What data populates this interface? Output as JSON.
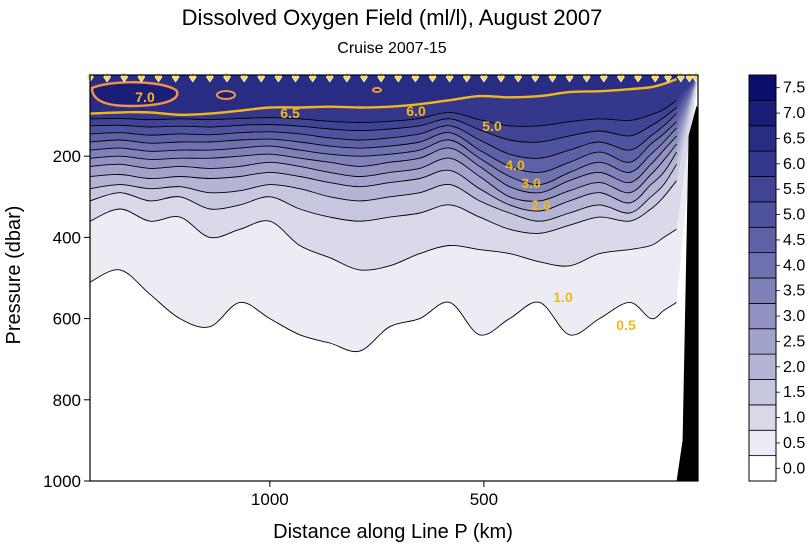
{
  "chart_data": {
    "type": "contour",
    "title": "Dissolved Oxygen Field  (ml/l),  August 2007",
    "subtitle": "Cruise 2007-15",
    "xlabel": "Distance along Line P  (km)",
    "ylabel": "Pressure  (dbar)",
    "x_range": [
      1420,
      0
    ],
    "x_ticks": [
      {
        "value": 1000,
        "label": "1000"
      },
      {
        "value": 500,
        "label": "500"
      }
    ],
    "y_range": [
      0,
      1000
    ],
    "y_inverted": true,
    "y_ticks": [
      {
        "value": 200,
        "label": "200"
      },
      {
        "value": 400,
        "label": "400"
      },
      {
        "value": 600,
        "label": "600"
      },
      {
        "value": 800,
        "label": "800"
      },
      {
        "value": 1000,
        "label": "1000"
      }
    ],
    "colorbar": {
      "levels": [
        "0.0",
        "0.5",
        "1.0",
        "1.5",
        "2.0",
        "2.5",
        "3.0",
        "3.5",
        "4.0",
        "4.5",
        "5.0",
        "5.5",
        "6.0",
        "6.5",
        "7.0",
        "7.5"
      ],
      "colors": [
        "#ffffff",
        "#ececf4",
        "#d9d9ea",
        "#c7c7e0",
        "#b4b5d5",
        "#a2a3cb",
        "#9192c2",
        "#8081b9",
        "#6f71b0",
        "#5f61a7",
        "#4f529e",
        "#414495",
        "#35378c",
        "#292c83",
        "#1a1e79",
        "#0a0f6e"
      ]
    },
    "labeled_contours": [
      {
        "level": "7.0",
        "color": "#f0944a"
      },
      {
        "level": "6.5",
        "color": "#f0b81c"
      },
      {
        "level": "6.0",
        "color": "#f0b81c"
      },
      {
        "level": "5.0",
        "color": "#f0b81c"
      },
      {
        "level": "4.0",
        "color": "#f0b81c"
      },
      {
        "level": "3.0",
        "color": "#f0b81c"
      },
      {
        "level": "2.0",
        "color": "#f0b81c"
      },
      {
        "level": "1.0",
        "color": "#f0b81c"
      },
      {
        "level": "0.5",
        "color": "#f0b81c"
      }
    ],
    "contour_depths": [
      {
        "level": 0.5,
        "depth": [
          510,
          480,
          540,
          600,
          620,
          560,
          600,
          640,
          660,
          680,
          620,
          600,
          560,
          640,
          600,
          560,
          640,
          600,
          560,
          600,
          580,
          560
        ]
      },
      {
        "level": 1.0,
        "depth": [
          360,
          330,
          360,
          350,
          400,
          380,
          360,
          420,
          450,
          480,
          470,
          440,
          420,
          430,
          440,
          460,
          470,
          440,
          430,
          420,
          400,
          380
        ]
      },
      {
        "level": 1.5,
        "depth": [
          310,
          290,
          310,
          300,
          330,
          320,
          300,
          330,
          350,
          360,
          350,
          340,
          320,
          350,
          380,
          390,
          370,
          350,
          360,
          330,
          300,
          260
        ]
      },
      {
        "level": 2.0,
        "depth": [
          280,
          270,
          280,
          275,
          290,
          285,
          270,
          280,
          300,
          310,
          300,
          290,
          270,
          310,
          340,
          360,
          340,
          320,
          340,
          300,
          270,
          220
        ]
      },
      {
        "level": 2.5,
        "depth": [
          250,
          245,
          255,
          250,
          255,
          250,
          240,
          250,
          265,
          275,
          265,
          255,
          235,
          280,
          320,
          335,
          310,
          290,
          315,
          270,
          240,
          190
        ]
      },
      {
        "level": 3.0,
        "depth": [
          225,
          220,
          230,
          225,
          230,
          225,
          215,
          225,
          240,
          250,
          240,
          230,
          205,
          250,
          300,
          310,
          285,
          265,
          290,
          245,
          210,
          170
        ]
      },
      {
        "level": 3.5,
        "depth": [
          205,
          200,
          208,
          205,
          205,
          200,
          195,
          205,
          215,
          225,
          215,
          205,
          180,
          225,
          275,
          290,
          260,
          240,
          265,
          220,
          185,
          150
        ]
      },
      {
        "level": 4.0,
        "depth": [
          185,
          180,
          188,
          185,
          185,
          180,
          175,
          185,
          195,
          200,
          195,
          185,
          160,
          205,
          250,
          270,
          240,
          215,
          240,
          195,
          165,
          130
        ]
      },
      {
        "level": 4.5,
        "depth": [
          165,
          160,
          168,
          165,
          165,
          160,
          158,
          165,
          175,
          180,
          175,
          165,
          142,
          185,
          225,
          240,
          215,
          190,
          215,
          170,
          145,
          115
        ]
      },
      {
        "level": 5.0,
        "depth": [
          145,
          142,
          148,
          145,
          147,
          142,
          140,
          145,
          155,
          160,
          155,
          145,
          125,
          160,
          195,
          205,
          185,
          165,
          185,
          150,
          125,
          95
        ]
      },
      {
        "level": 5.5,
        "depth": [
          125,
          124,
          128,
          126,
          128,
          124,
          122,
          126,
          133,
          137,
          133,
          125,
          108,
          135,
          160,
          165,
          150,
          138,
          150,
          125,
          105,
          80
        ]
      },
      {
        "level": 6.0,
        "depth": [
          108,
          107,
          110,
          108,
          110,
          107,
          105,
          108,
          114,
          117,
          114,
          107,
          92,
          110,
          125,
          125,
          115,
          108,
          112,
          98,
          85,
          62
        ]
      }
    ],
    "contour_x": [
      1420,
      1350,
      1280,
      1210,
      1140,
      1070,
      1000,
      930,
      860,
      790,
      720,
      650,
      580,
      510,
      440,
      370,
      300,
      230,
      160,
      110,
      80,
      50
    ],
    "contour_6_5_depth": [
      95,
      92,
      92,
      98,
      95,
      88,
      80,
      80,
      78,
      80,
      78,
      72,
      62,
      52,
      55,
      52,
      42,
      40,
      35,
      30,
      22,
      10
    ],
    "station_markers_x": [
      1420,
      1380,
      1340,
      1300,
      1260,
      1220,
      1180,
      1140,
      1100,
      1060,
      1020,
      980,
      940,
      900,
      860,
      820,
      780,
      740,
      700,
      660,
      620,
      580,
      540,
      500,
      460,
      420,
      380,
      340,
      300,
      260,
      220,
      180,
      140,
      100,
      70,
      40,
      20,
      5
    ],
    "bathymetry": {
      "color": "#000000",
      "x": [
        50,
        0
      ],
      "top_depth": 75
    }
  }
}
